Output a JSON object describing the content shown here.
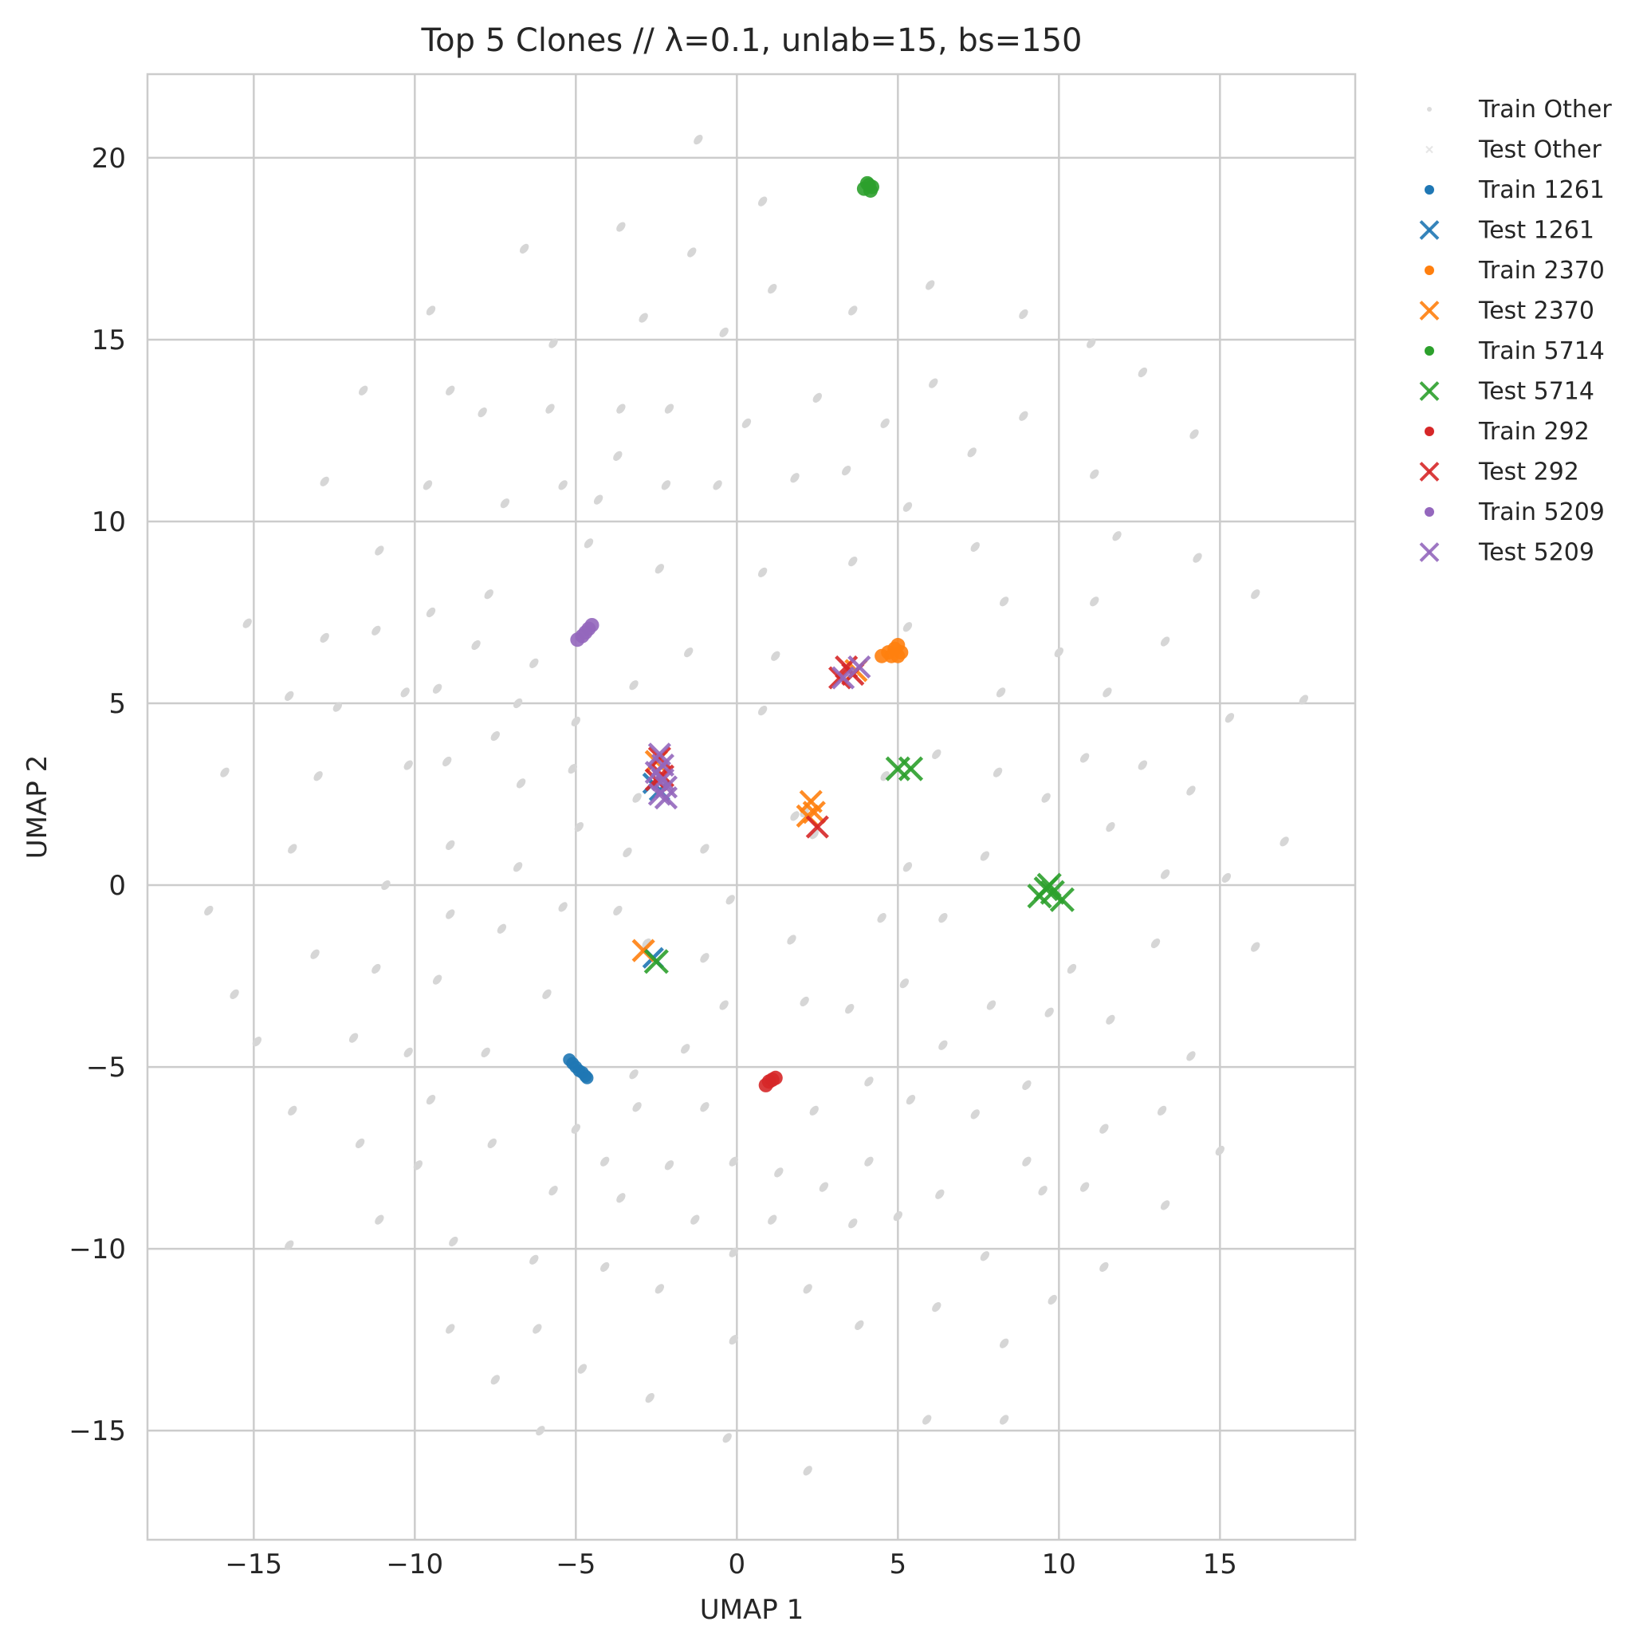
{
  "chart_data": {
    "type": "scatter",
    "title": "Top 5 Clones // λ=0.1, unlab=15, bs=150",
    "xlabel": "UMAP 1",
    "ylabel": "UMAP 2",
    "xlim": [
      -18.3,
      19.2
    ],
    "ylim": [
      -18.0,
      22.3
    ],
    "xticks": [
      -15,
      -10,
      -5,
      0,
      5,
      10,
      15
    ],
    "yticks": [
      -15,
      -10,
      -5,
      0,
      5,
      10,
      15,
      20
    ],
    "xtick_labels": [
      "−15",
      "−10",
      "−5",
      "0",
      "5",
      "10",
      "15"
    ],
    "ytick_labels": [
      "−15",
      "−10",
      "−5",
      "0",
      "5",
      "10",
      "15",
      "20"
    ],
    "grid": true,
    "legend_position": "outside-right",
    "background_points": [
      [
        -1.2,
        20.5
      ],
      [
        0.8,
        18.8
      ],
      [
        -3.6,
        18.1
      ],
      [
        -6.6,
        17.5
      ],
      [
        -1.4,
        17.4
      ],
      [
        1.1,
        16.4
      ],
      [
        6.0,
        16.5
      ],
      [
        3.6,
        15.8
      ],
      [
        -9.5,
        15.8
      ],
      [
        -2.9,
        15.6
      ],
      [
        8.9,
        15.7
      ],
      [
        -5.7,
        14.9
      ],
      [
        -0.4,
        15.2
      ],
      [
        11.0,
        14.9
      ],
      [
        12.6,
        14.1
      ],
      [
        -11.6,
        13.6
      ],
      [
        -8.9,
        13.6
      ],
      [
        2.5,
        13.4
      ],
      [
        6.1,
        13.8
      ],
      [
        -7.9,
        13.0
      ],
      [
        -5.8,
        13.1
      ],
      [
        -3.6,
        13.1
      ],
      [
        -2.1,
        13.1
      ],
      [
        0.3,
        12.7
      ],
      [
        4.6,
        12.7
      ],
      [
        8.9,
        12.9
      ],
      [
        14.2,
        12.4
      ],
      [
        -3.7,
        11.8
      ],
      [
        -12.8,
        11.1
      ],
      [
        -9.6,
        11.0
      ],
      [
        -5.4,
        11.0
      ],
      [
        -2.2,
        11.0
      ],
      [
        -0.6,
        11.0
      ],
      [
        1.8,
        11.2
      ],
      [
        3.4,
        11.4
      ],
      [
        7.3,
        11.9
      ],
      [
        11.1,
        11.3
      ],
      [
        -7.2,
        10.5
      ],
      [
        -4.3,
        10.6
      ],
      [
        5.3,
        10.4
      ],
      [
        -11.1,
        9.2
      ],
      [
        -4.6,
        9.4
      ],
      [
        3.6,
        8.9
      ],
      [
        7.4,
        9.3
      ],
      [
        11.8,
        9.6
      ],
      [
        14.3,
        9.0
      ],
      [
        -2.4,
        8.7
      ],
      [
        0.8,
        8.6
      ],
      [
        -7.7,
        8.0
      ],
      [
        -9.5,
        7.5
      ],
      [
        8.3,
        7.8
      ],
      [
        11.1,
        7.8
      ],
      [
        16.1,
        8.0
      ],
      [
        -15.2,
        7.2
      ],
      [
        -11.2,
        7.0
      ],
      [
        -12.8,
        6.8
      ],
      [
        -8.1,
        6.6
      ],
      [
        -6.3,
        6.1
      ],
      [
        1.2,
        6.3
      ],
      [
        -1.5,
        6.4
      ],
      [
        5.3,
        7.1
      ],
      [
        10.0,
        6.4
      ],
      [
        13.3,
        6.7
      ],
      [
        -13.9,
        5.2
      ],
      [
        -12.4,
        4.9
      ],
      [
        -10.3,
        5.3
      ],
      [
        -9.3,
        5.4
      ],
      [
        -6.8,
        5.0
      ],
      [
        -5.0,
        4.5
      ],
      [
        -3.2,
        5.5
      ],
      [
        0.8,
        4.8
      ],
      [
        8.2,
        5.3
      ],
      [
        11.5,
        5.3
      ],
      [
        15.3,
        4.6
      ],
      [
        17.6,
        5.1
      ],
      [
        -7.5,
        4.1
      ],
      [
        -10.2,
        3.3
      ],
      [
        -9.0,
        3.4
      ],
      [
        -15.9,
        3.1
      ],
      [
        -13.0,
        3.0
      ],
      [
        -5.1,
        3.2
      ],
      [
        -6.7,
        2.8
      ],
      [
        6.2,
        3.6
      ],
      [
        8.1,
        3.1
      ],
      [
        10.8,
        3.5
      ],
      [
        12.6,
        3.3
      ],
      [
        14.1,
        2.6
      ],
      [
        -3.1,
        2.4
      ],
      [
        1.8,
        1.9
      ],
      [
        9.6,
        2.4
      ],
      [
        -4.9,
        1.6
      ],
      [
        11.6,
        1.6
      ],
      [
        -13.8,
        1.0
      ],
      [
        -8.9,
        1.1
      ],
      [
        -3.4,
        0.9
      ],
      [
        -1.0,
        1.0
      ],
      [
        7.7,
        0.8
      ],
      [
        17.0,
        1.2
      ],
      [
        -6.8,
        0.5
      ],
      [
        5.3,
        0.5
      ],
      [
        13.3,
        0.3
      ],
      [
        15.2,
        0.2
      ],
      [
        -10.9,
        0.0
      ],
      [
        -16.4,
        -0.7
      ],
      [
        -8.9,
        -0.8
      ],
      [
        -5.4,
        -0.6
      ],
      [
        -3.7,
        -0.7
      ],
      [
        -0.2,
        -0.4
      ],
      [
        4.5,
        -0.9
      ],
      [
        6.4,
        -0.9
      ],
      [
        -7.3,
        -1.2
      ],
      [
        1.7,
        -1.5
      ],
      [
        -13.1,
        -1.9
      ],
      [
        -11.2,
        -2.3
      ],
      [
        -9.3,
        -2.6
      ],
      [
        -1.0,
        -2.0
      ],
      [
        5.2,
        -2.7
      ],
      [
        10.4,
        -2.3
      ],
      [
        13.0,
        -1.6
      ],
      [
        16.1,
        -1.7
      ],
      [
        -15.6,
        -3.0
      ],
      [
        -5.9,
        -3.0
      ],
      [
        -0.4,
        -3.3
      ],
      [
        2.1,
        -3.2
      ],
      [
        3.5,
        -3.4
      ],
      [
        7.9,
        -3.3
      ],
      [
        9.7,
        -3.5
      ],
      [
        11.6,
        -3.7
      ],
      [
        -14.9,
        -4.3
      ],
      [
        -11.9,
        -4.2
      ],
      [
        -10.2,
        -4.6
      ],
      [
        -7.8,
        -4.6
      ],
      [
        -1.6,
        -4.5
      ],
      [
        6.4,
        -4.4
      ],
      [
        14.1,
        -4.7
      ],
      [
        -3.2,
        -5.2
      ],
      [
        4.1,
        -5.4
      ],
      [
        -9.5,
        -5.9
      ],
      [
        -13.8,
        -6.2
      ],
      [
        -3.1,
        -6.1
      ],
      [
        -1.0,
        -6.1
      ],
      [
        2.4,
        -6.2
      ],
      [
        5.4,
        -5.9
      ],
      [
        7.4,
        -6.3
      ],
      [
        9.0,
        -5.5
      ],
      [
        13.2,
        -6.2
      ],
      [
        -11.7,
        -7.1
      ],
      [
        -7.6,
        -7.1
      ],
      [
        -5.0,
        -6.7
      ],
      [
        11.4,
        -6.7
      ],
      [
        -9.9,
        -7.7
      ],
      [
        -4.1,
        -7.6
      ],
      [
        -2.1,
        -7.7
      ],
      [
        -0.1,
        -7.6
      ],
      [
        1.3,
        -7.9
      ],
      [
        4.1,
        -7.6
      ],
      [
        9.0,
        -7.6
      ],
      [
        15.0,
        -7.3
      ],
      [
        -5.7,
        -8.4
      ],
      [
        2.7,
        -8.3
      ],
      [
        6.3,
        -8.5
      ],
      [
        9.5,
        -8.4
      ],
      [
        10.8,
        -8.3
      ],
      [
        -11.1,
        -9.2
      ],
      [
        -3.6,
        -8.6
      ],
      [
        -1.3,
        -9.2
      ],
      [
        1.1,
        -9.2
      ],
      [
        3.6,
        -9.3
      ],
      [
        5.0,
        -9.1
      ],
      [
        13.3,
        -8.8
      ],
      [
        -13.9,
        -9.9
      ],
      [
        -8.8,
        -9.8
      ],
      [
        -6.3,
        -10.3
      ],
      [
        -0.1,
        -10.1
      ],
      [
        7.7,
        -10.2
      ],
      [
        -4.1,
        -10.5
      ],
      [
        11.4,
        -10.5
      ],
      [
        -2.4,
        -11.1
      ],
      [
        2.2,
        -11.1
      ],
      [
        9.8,
        -11.4
      ],
      [
        -8.9,
        -12.2
      ],
      [
        -6.2,
        -12.2
      ],
      [
        3.8,
        -12.1
      ],
      [
        6.2,
        -11.6
      ],
      [
        -0.1,
        -12.5
      ],
      [
        8.3,
        -12.6
      ],
      [
        -7.5,
        -13.6
      ],
      [
        -4.8,
        -13.3
      ],
      [
        -2.7,
        -14.1
      ],
      [
        -6.1,
        -15.0
      ],
      [
        -0.3,
        -15.2
      ],
      [
        5.9,
        -14.7
      ],
      [
        8.3,
        -14.7
      ],
      [
        2.2,
        -16.1
      ],
      [
        2.1,
        2.0
      ],
      [
        2.4,
        1.4
      ],
      [
        4.6,
        3.0
      ],
      [
        -2.8,
        -1.6
      ]
    ],
    "series": [
      {
        "name": "Train Other",
        "color": "#dcdcdc",
        "marker": "dot",
        "size": 3,
        "points": []
      },
      {
        "name": "Test Other",
        "color": "#e3e3e3",
        "marker": "x",
        "size": 3,
        "points": []
      },
      {
        "name": "Train 1261",
        "color": "#1f77b4",
        "marker": "dot",
        "size": 5,
        "points": [
          [
            -5.2,
            -4.8
          ],
          [
            -5.1,
            -4.9
          ],
          [
            -5.0,
            -5.0
          ],
          [
            -4.9,
            -5.1
          ],
          [
            -4.8,
            -5.15
          ],
          [
            -4.7,
            -5.25
          ],
          [
            -4.65,
            -5.3
          ]
        ]
      },
      {
        "name": "Test 1261",
        "color": "#1f77b4",
        "marker": "x",
        "size": 9,
        "points": [
          [
            -2.6,
            2.8
          ],
          [
            -2.4,
            2.6
          ],
          [
            -2.6,
            -2.0
          ]
        ]
      },
      {
        "name": "Train 2370",
        "color": "#ff7f0e",
        "marker": "dot",
        "size": 6,
        "points": [
          [
            4.5,
            6.3
          ],
          [
            4.7,
            6.4
          ],
          [
            4.9,
            6.5
          ],
          [
            5.0,
            6.6
          ],
          [
            4.8,
            6.3
          ],
          [
            5.1,
            6.4
          ],
          [
            5.0,
            6.3
          ]
        ]
      },
      {
        "name": "Test 2370",
        "color": "#ff7f0e",
        "marker": "x",
        "size": 10,
        "points": [
          [
            2.3,
            2.3
          ],
          [
            2.2,
            1.9
          ],
          [
            2.4,
            2.0
          ],
          [
            3.7,
            5.9
          ],
          [
            -2.9,
            -1.8
          ],
          [
            -2.5,
            3.4
          ]
        ]
      },
      {
        "name": "Train 5714",
        "color": "#2ca02c",
        "marker": "dot",
        "size": 6,
        "points": [
          [
            3.95,
            19.15
          ],
          [
            4.1,
            19.25
          ],
          [
            4.2,
            19.2
          ],
          [
            4.05,
            19.3
          ],
          [
            4.15,
            19.1
          ]
        ]
      },
      {
        "name": "Test 5714",
        "color": "#2ca02c",
        "marker": "x",
        "size": 11,
        "points": [
          [
            9.4,
            -0.3
          ],
          [
            9.7,
            0.0
          ],
          [
            9.8,
            -0.2
          ],
          [
            10.1,
            -0.4
          ],
          [
            9.6,
            -0.1
          ],
          [
            5.0,
            3.2
          ],
          [
            5.4,
            3.2
          ],
          [
            -2.5,
            -2.1
          ]
        ]
      },
      {
        "name": "Train 292",
        "color": "#d62728",
        "marker": "dot",
        "size": 6,
        "points": [
          [
            0.9,
            -5.5
          ],
          [
            1.0,
            -5.4
          ],
          [
            1.1,
            -5.35
          ],
          [
            1.2,
            -5.3
          ]
        ]
      },
      {
        "name": "Test 292",
        "color": "#d62728",
        "marker": "x",
        "size": 10,
        "points": [
          [
            3.4,
            6.0
          ],
          [
            3.6,
            5.8
          ],
          [
            3.2,
            5.7
          ],
          [
            2.5,
            1.6
          ],
          [
            -2.4,
            3.5
          ],
          [
            -2.3,
            3.0
          ],
          [
            -2.5,
            2.9
          ]
        ]
      },
      {
        "name": "Train 5209",
        "color": "#9467bd",
        "marker": "dot",
        "size": 6,
        "points": [
          [
            -4.95,
            6.75
          ],
          [
            -4.8,
            6.85
          ],
          [
            -4.7,
            6.95
          ],
          [
            -4.6,
            7.05
          ],
          [
            -4.5,
            7.15
          ]
        ]
      },
      {
        "name": "Test 5209",
        "color": "#9467bd",
        "marker": "x",
        "size": 10,
        "points": [
          [
            -2.4,
            3.6
          ],
          [
            -2.3,
            3.3
          ],
          [
            -2.5,
            3.1
          ],
          [
            -2.3,
            2.9
          ],
          [
            -2.2,
            2.7
          ],
          [
            -2.4,
            2.5
          ],
          [
            -2.2,
            2.4
          ],
          [
            3.3,
            5.7
          ],
          [
            3.8,
            6.0
          ]
        ]
      }
    ]
  }
}
